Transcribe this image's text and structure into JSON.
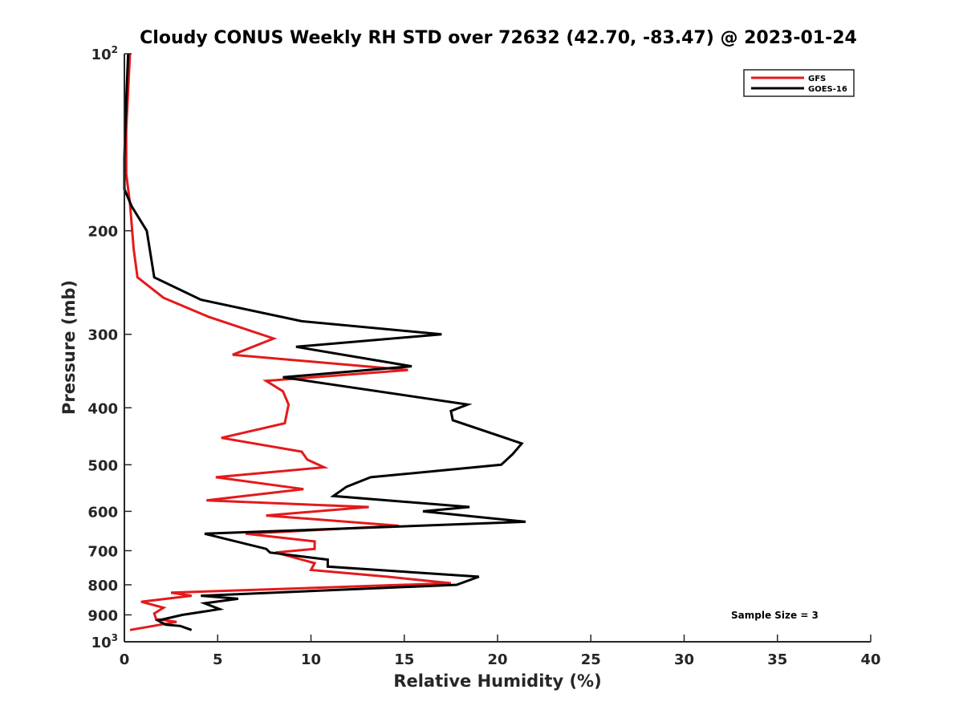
{
  "chart_data": {
    "type": "line",
    "title": "Cloudy CONUS Weekly RH STD over 72632 (42.70, -83.47) @ 2023-01-24",
    "xlabel": "Relative Humidity (%)",
    "ylabel": "Pressure (mb)",
    "xlim": [
      0,
      40
    ],
    "ylim": [
      100,
      1000
    ],
    "y_scale": "log",
    "y_reversed": true,
    "x_ticks": [
      "0",
      "5",
      "10",
      "15",
      "20",
      "25",
      "30",
      "35",
      "40"
    ],
    "y_ticks": [
      {
        "value": 100,
        "label": "10",
        "sup": "2"
      },
      {
        "value": 200,
        "label": "200",
        "sup": ""
      },
      {
        "value": 300,
        "label": "300",
        "sup": ""
      },
      {
        "value": 400,
        "label": "400",
        "sup": ""
      },
      {
        "value": 500,
        "label": "500",
        "sup": ""
      },
      {
        "value": 600,
        "label": "600",
        "sup": ""
      },
      {
        "value": 700,
        "label": "700",
        "sup": ""
      },
      {
        "value": 800,
        "label": "800",
        "sup": ""
      },
      {
        "value": 900,
        "label": "900",
        "sup": ""
      },
      {
        "value": 1000,
        "label": "10",
        "sup": "3"
      }
    ],
    "grid": false,
    "legend_position": "top-right",
    "annotation": "Sample Size = 3",
    "series": [
      {
        "name": "GFS",
        "color": "#e31a1c",
        "points": [
          [
            0.3,
            100
          ],
          [
            0.2,
            115
          ],
          [
            0.1,
            135
          ],
          [
            0.1,
            160
          ],
          [
            0.3,
            180
          ],
          [
            0.5,
            215
          ],
          [
            0.7,
            240
          ],
          [
            2.1,
            260
          ],
          [
            4.5,
            280
          ],
          [
            8.0,
            305
          ],
          [
            5.8,
            325
          ],
          [
            15.2,
            345
          ],
          [
            7.6,
            360
          ],
          [
            8.5,
            375
          ],
          [
            8.8,
            395
          ],
          [
            8.6,
            425
          ],
          [
            5.2,
            450
          ],
          [
            9.5,
            475
          ],
          [
            9.8,
            490
          ],
          [
            10.7,
            505
          ],
          [
            4.9,
            525
          ],
          [
            9.6,
            550
          ],
          [
            4.4,
            575
          ],
          [
            13.1,
            590
          ],
          [
            7.6,
            610
          ],
          [
            14.7,
            635
          ],
          [
            6.5,
            655
          ],
          [
            10.2,
            675
          ],
          [
            10.2,
            695
          ],
          [
            8.1,
            705
          ],
          [
            10.2,
            735
          ],
          [
            10.0,
            755
          ],
          [
            14.1,
            775
          ],
          [
            17.5,
            795
          ],
          [
            2.5,
            825
          ],
          [
            3.6,
            835
          ],
          [
            0.9,
            855
          ],
          [
            2.1,
            875
          ],
          [
            1.6,
            895
          ],
          [
            1.7,
            915
          ],
          [
            2.8,
            925
          ],
          [
            0.3,
            955
          ]
        ]
      },
      {
        "name": "GOES-16",
        "color": "#000000",
        "points": [
          [
            0.2,
            100
          ],
          [
            0.1,
            120
          ],
          [
            0.0,
            150
          ],
          [
            0.0,
            170
          ],
          [
            0.4,
            182
          ],
          [
            1.2,
            200
          ],
          [
            1.6,
            240
          ],
          [
            4.1,
            262
          ],
          [
            9.5,
            285
          ],
          [
            17.0,
            300
          ],
          [
            9.2,
            315
          ],
          [
            15.4,
            340
          ],
          [
            8.5,
            355
          ],
          [
            18.4,
            395
          ],
          [
            17.5,
            405
          ],
          [
            17.6,
            420
          ],
          [
            21.3,
            460
          ],
          [
            20.8,
            480
          ],
          [
            20.2,
            500
          ],
          [
            13.2,
            525
          ],
          [
            11.9,
            545
          ],
          [
            11.2,
            565
          ],
          [
            18.5,
            590
          ],
          [
            16.0,
            600
          ],
          [
            21.5,
            625
          ],
          [
            4.3,
            655
          ],
          [
            7.6,
            695
          ],
          [
            7.8,
            705
          ],
          [
            10.9,
            725
          ],
          [
            10.9,
            745
          ],
          [
            19.0,
            775
          ],
          [
            17.8,
            800
          ],
          [
            4.1,
            835
          ],
          [
            6.1,
            845
          ],
          [
            4.3,
            860
          ],
          [
            5.1,
            880
          ],
          [
            3.1,
            900
          ],
          [
            1.8,
            920
          ],
          [
            2.2,
            935
          ],
          [
            3.0,
            940
          ],
          [
            3.6,
            955
          ]
        ]
      }
    ]
  }
}
